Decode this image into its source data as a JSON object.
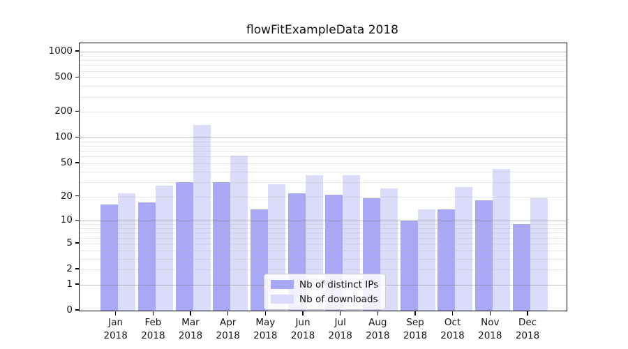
{
  "title": "flowFitExampleData 2018",
  "chart_data": {
    "type": "bar",
    "title": "flowFitExampleData 2018",
    "categories": [
      "Jan 2018",
      "Feb 2018",
      "Mar 2018",
      "Apr 2018",
      "May 2018",
      "Jun 2018",
      "Jul 2018",
      "Aug 2018",
      "Sep 2018",
      "Oct 2018",
      "Nov 2018",
      "Dec 2018"
    ],
    "series": [
      {
        "name": "Nb of distinct IPs",
        "color": "#a8a8f6",
        "values": [
          16,
          17,
          30,
          30,
          14,
          22,
          21,
          19,
          10,
          14,
          18,
          9
        ]
      },
      {
        "name": "Nb of downloads",
        "color": "#dbdbfa",
        "values": [
          22,
          27,
          140,
          62,
          28,
          36,
          36,
          25,
          14,
          26,
          43,
          19
        ]
      }
    ],
    "xlabel": "",
    "ylabel": "",
    "yscale": "log1p",
    "ylim": [
      0,
      1255
    ],
    "yticks": [
      0,
      1,
      2,
      5,
      10,
      20,
      50,
      100,
      200,
      500,
      1000
    ],
    "yticks_minor": [
      2,
      3,
      4,
      5,
      6,
      7,
      8,
      9,
      20,
      30,
      40,
      50,
      60,
      70,
      80,
      90,
      200,
      300,
      400,
      500,
      600,
      700,
      800,
      900
    ],
    "ymajor_gridlines": [
      1,
      10,
      100,
      1000
    ],
    "grid": true,
    "legend_position": "inside lower-center"
  }
}
